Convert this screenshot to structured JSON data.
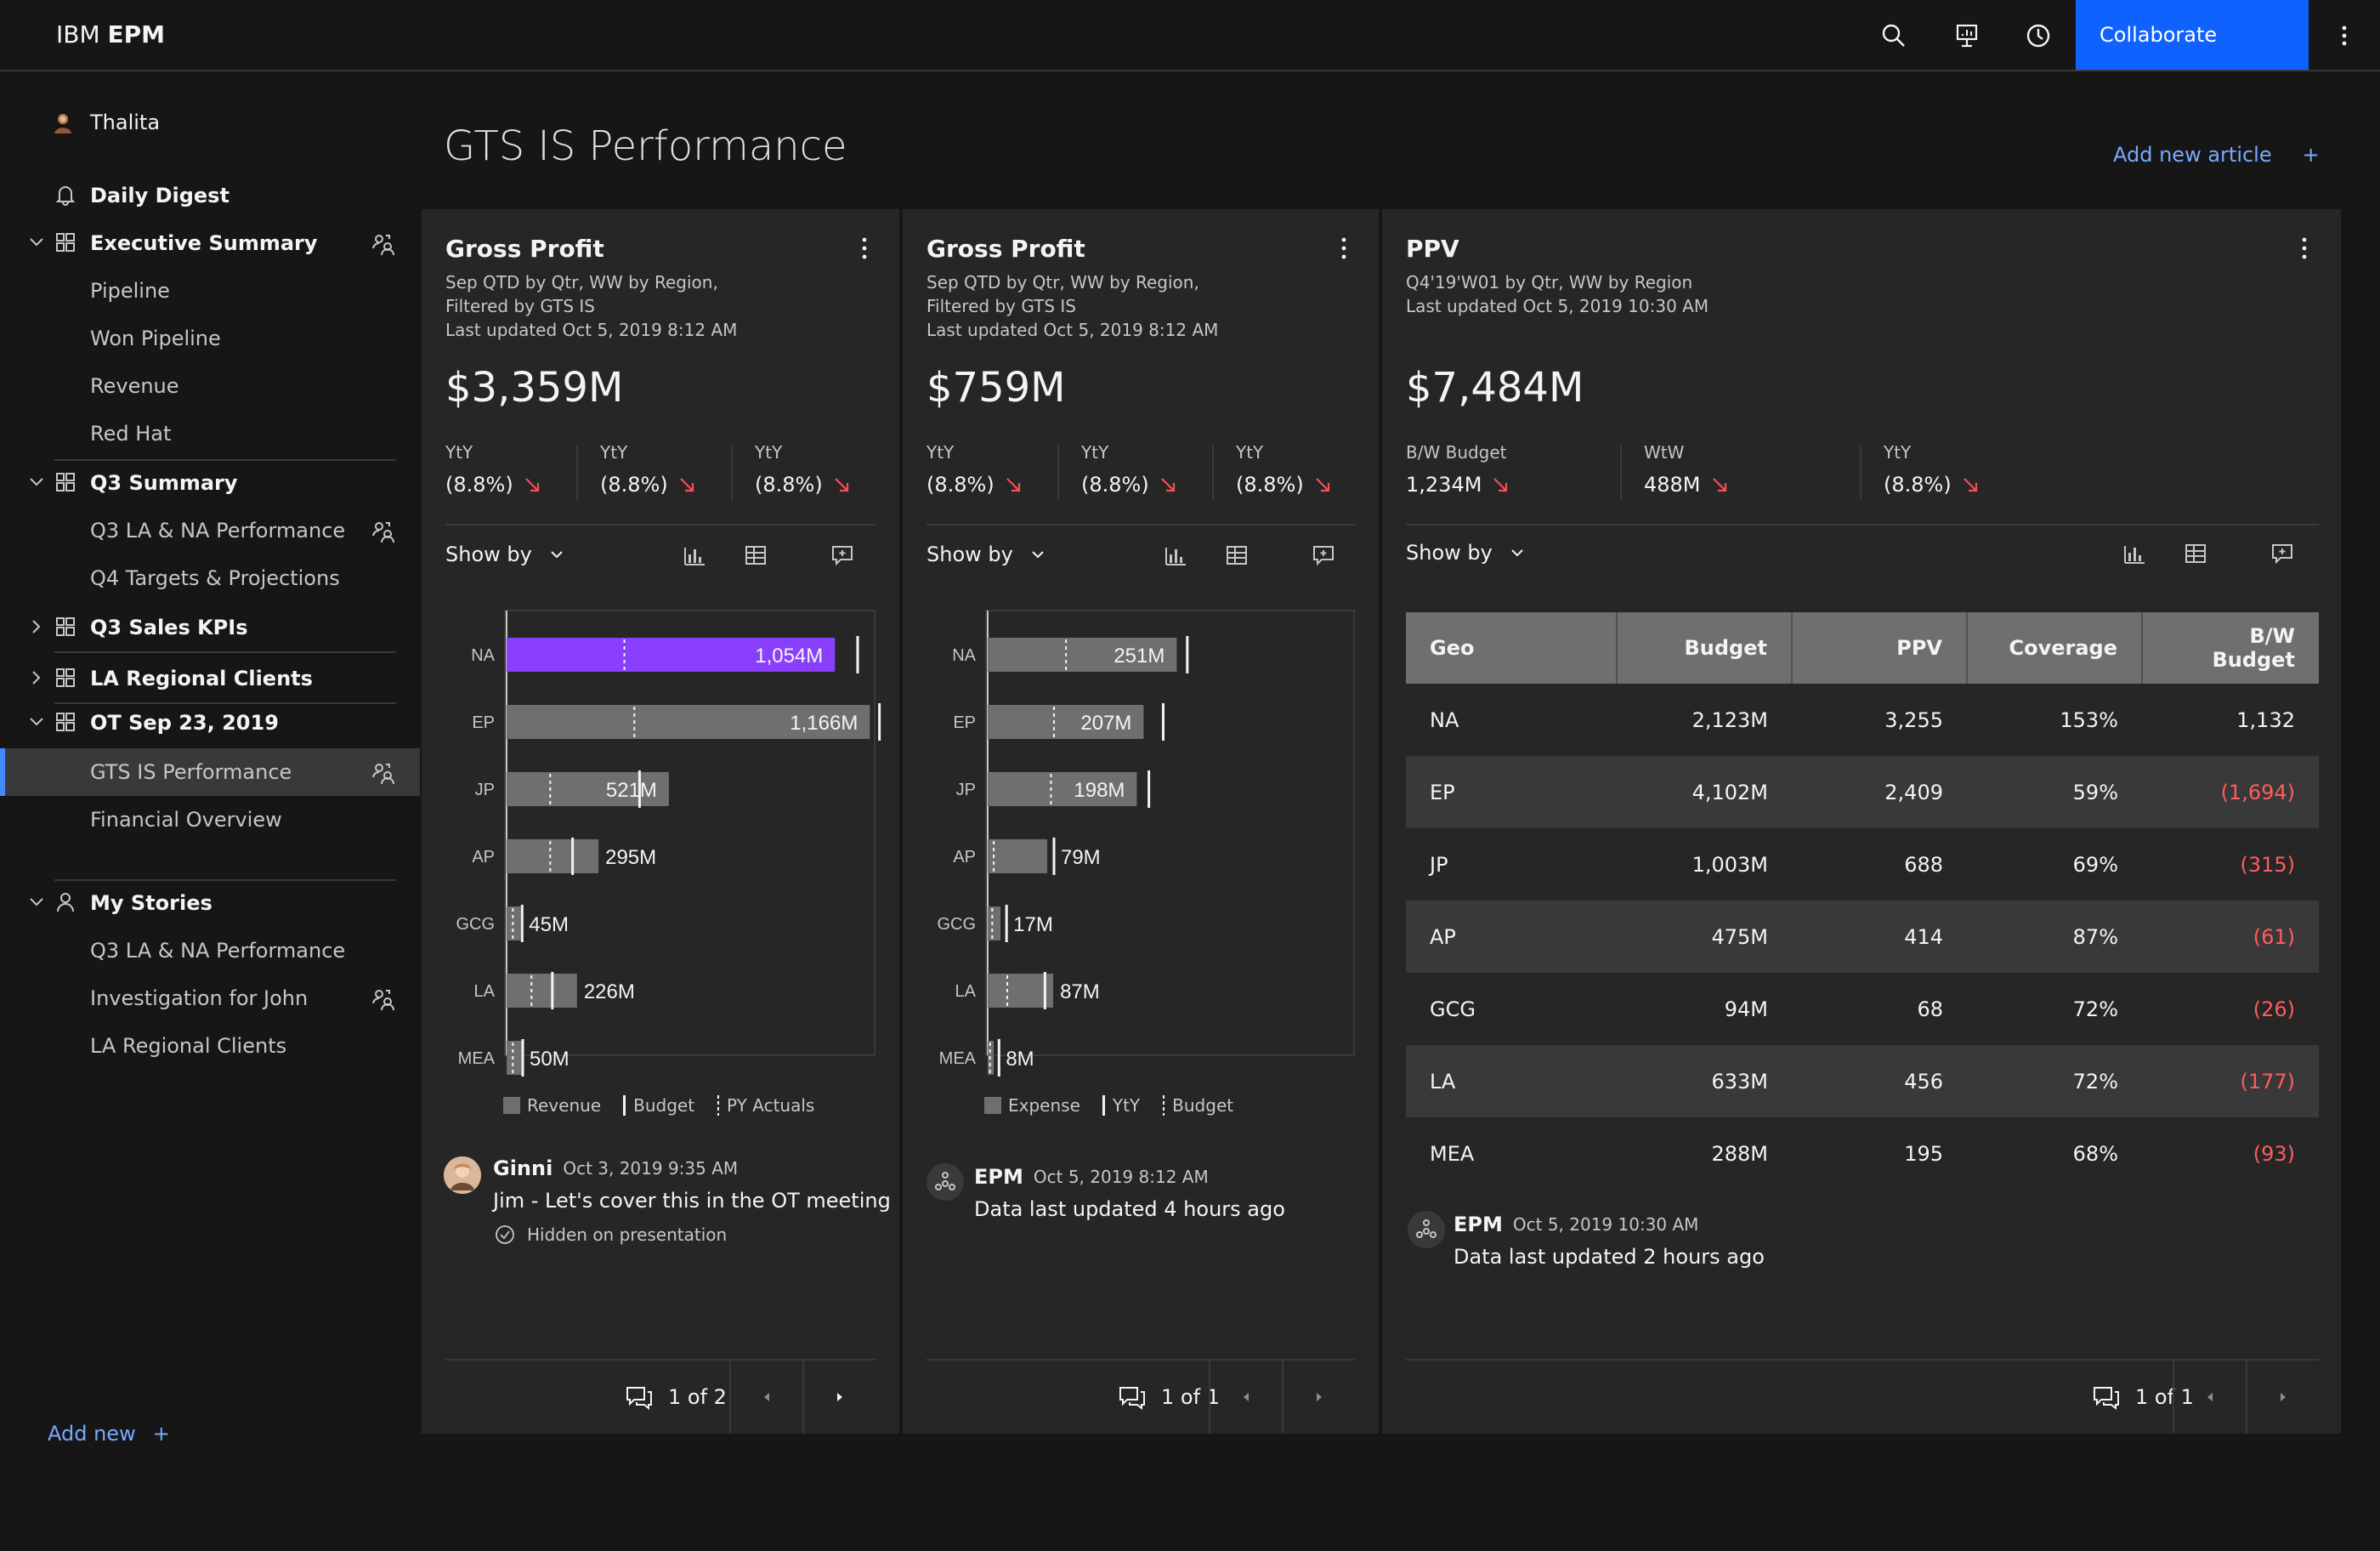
{
  "app": {
    "brand_prefix": "IBM",
    "brand_name": "EPM",
    "collaborate": "Collaborate"
  },
  "sidebar": {
    "user": "Thalita",
    "items": [
      {
        "label": "Daily Digest"
      },
      {
        "label": "Executive Summary"
      },
      {
        "label": "Pipeline"
      },
      {
        "label": "Won Pipeline"
      },
      {
        "label": "Revenue"
      },
      {
        "label": "Red Hat"
      },
      {
        "label": "Q3 Summary"
      },
      {
        "label": "Q3 LA & NA Performance"
      },
      {
        "label": "Q4 Targets & Projections"
      },
      {
        "label": "Q3 Sales KPIs"
      },
      {
        "label": "LA Regional Clients"
      },
      {
        "label": "OT Sep 23, 2019"
      },
      {
        "label": "GTS IS Performance"
      },
      {
        "label": "Financial Overview"
      },
      {
        "label": "My Stories"
      },
      {
        "label": "Q3 LA & NA Performance"
      },
      {
        "label": "Investigation for John"
      },
      {
        "label": "LA Regional Clients"
      }
    ],
    "add_new": "Add new"
  },
  "main": {
    "title": "GTS IS Performance",
    "add_article": "Add new article"
  },
  "cards": [
    {
      "title": "Gross Profit",
      "subtitle": [
        "Sep QTD by Qtr, WW by Region,",
        "Filtered by GTS IS",
        "Last updated Oct 5, 2019 8:12 AM"
      ],
      "value": "$3,359M",
      "kpis": [
        {
          "label": "YtY",
          "value": "(8.8%)"
        },
        {
          "label": "YtY",
          "value": "(8.8%)"
        },
        {
          "label": "YtY",
          "value": "(8.8%)"
        }
      ],
      "show_by": "Show by",
      "legend": [
        "Revenue",
        "Budget",
        "PY Actuals"
      ],
      "comment": {
        "author": "Ginni",
        "time": "Oct 3, 2019 9:35 AM",
        "text": "Jim - Let's cover this in the OT meeting",
        "note": "Hidden on presentation"
      },
      "pager": "1 of 2"
    },
    {
      "title": "Gross Profit",
      "subtitle": [
        "Sep QTD by Qtr, WW by Region,",
        "Filtered by GTS IS",
        "Last updated Oct 5, 2019 8:12 AM"
      ],
      "value": "$759M",
      "kpis": [
        {
          "label": "YtY",
          "value": "(8.8%)"
        },
        {
          "label": "YtY",
          "value": "(8.8%)"
        },
        {
          "label": "YtY",
          "value": "(8.8%)"
        }
      ],
      "show_by": "Show by",
      "legend": [
        "Expense",
        "YtY",
        "Budget"
      ],
      "comment": {
        "author": "EPM",
        "time": "Oct 5, 2019 8:12 AM",
        "text": "Data last updated 4 hours ago"
      },
      "pager": "1 of 1"
    },
    {
      "title": "PPV",
      "subtitle": [
        "Q4'19'W01 by Qtr, WW by Region",
        "Last updated Oct 5, 2019 10:30 AM"
      ],
      "value": "$7,484M",
      "kpis": [
        {
          "label": "B/W Budget",
          "value": "1,234M"
        },
        {
          "label": "WtW",
          "value": "488M"
        },
        {
          "label": "YtY",
          "value": "(8.8%)"
        }
      ],
      "show_by": "Show by",
      "table": {
        "headers": [
          "Geo",
          "Budget",
          "PPV",
          "Coverage",
          "B/W Budget"
        ],
        "rows": [
          [
            "NA",
            "2,123M",
            "3,255",
            "153%",
            "1,132"
          ],
          [
            "EP",
            "4,102M",
            "2,409",
            "59%",
            "(1,694)"
          ],
          [
            "JP",
            "1,003M",
            "688",
            "69%",
            "(315)"
          ],
          [
            "AP",
            "475M",
            "414",
            "87%",
            "(61)"
          ],
          [
            "GCG",
            "94M",
            "68",
            "72%",
            "(26)"
          ],
          [
            "LA",
            "633M",
            "456",
            "72%",
            "(177)"
          ],
          [
            "MEA",
            "288M",
            "195",
            "68%",
            "(93)"
          ]
        ]
      },
      "comment": {
        "author": "EPM",
        "time": "Oct 5, 2019 10:30 AM",
        "text": "Data last updated 2 hours ago"
      },
      "pager": "1 of 1"
    }
  ],
  "chart_data": [
    {
      "type": "bar",
      "categories": [
        "NA",
        "EP",
        "JP",
        "AP",
        "GCG",
        "LA",
        "MEA"
      ],
      "series": [
        {
          "name": "Revenue",
          "values": [
            1054,
            1166,
            521,
            295,
            45,
            226,
            50
          ],
          "labels": [
            "1,054M",
            "1,166M",
            "521M",
            "295M",
            "45M",
            "226M",
            "50M"
          ]
        },
        {
          "name": "Budget",
          "values": [
            1105,
            1175,
            405,
            190,
            28,
            125,
            30
          ]
        },
        {
          "name": "PY Actuals",
          "values": [
            378,
            410,
            140,
            140,
            20,
            80,
            20
          ]
        }
      ],
      "colors": {
        "highlight": "#8a3ffc",
        "bar": "#6f6f6f",
        "budget": "#f4f4f4",
        "py": "#f4f4f4"
      }
    },
    {
      "type": "bar",
      "categories": [
        "NA",
        "EP",
        "JP",
        "AP",
        "GCG",
        "LA",
        "MEA"
      ],
      "series": [
        {
          "name": "Expense",
          "values": [
            251,
            207,
            198,
            79,
            17,
            87,
            8
          ],
          "labels": [
            "251M",
            "207M",
            "198M",
            "79M",
            "17M",
            "87M",
            "8M"
          ]
        },
        {
          "name": "YtY",
          "values": [
            256,
            224,
            205,
            79,
            16,
            67,
            6
          ]
        },
        {
          "name": "Budget",
          "values": [
            104,
            88,
            84,
            8,
            6,
            26,
            3
          ]
        }
      ],
      "colors": {
        "bar": "#6f6f6f",
        "budget": "#f4f4f4"
      }
    }
  ]
}
